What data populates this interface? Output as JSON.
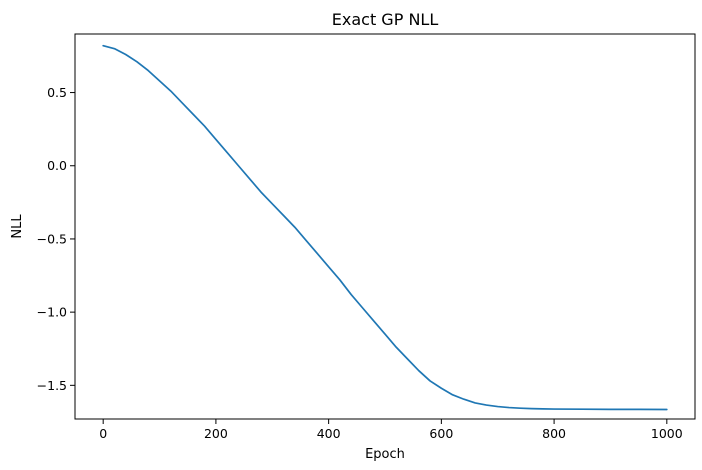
{
  "chart_data": {
    "type": "line",
    "title": "Exact GP NLL",
    "xlabel": "Epoch",
    "ylabel": "NLL",
    "xlim": [
      -50,
      1050
    ],
    "ylim": [
      -1.73,
      0.9
    ],
    "grid": false,
    "x_ticks": [
      0,
      200,
      400,
      600,
      800,
      1000
    ],
    "x_tick_labels": [
      "0",
      "200",
      "400",
      "600",
      "800",
      "1000"
    ],
    "y_ticks": [
      0.5,
      0.0,
      -0.5,
      -1.0,
      -1.5
    ],
    "y_tick_labels": [
      "0.5",
      "0.0",
      "−0.5",
      "−1.0",
      "−1.5"
    ],
    "series": [
      {
        "color": "#1f77b4",
        "x": [
          0,
          20,
          40,
          60,
          80,
          100,
          120,
          140,
          160,
          180,
          200,
          220,
          240,
          260,
          280,
          300,
          320,
          340,
          360,
          380,
          400,
          420,
          440,
          460,
          480,
          500,
          520,
          540,
          560,
          580,
          600,
          620,
          640,
          660,
          680,
          700,
          720,
          740,
          760,
          780,
          800,
          850,
          900,
          950,
          1000
        ],
        "y": [
          0.82,
          0.8,
          0.76,
          0.71,
          0.65,
          0.58,
          0.51,
          0.43,
          0.35,
          0.27,
          0.18,
          0.09,
          0.0,
          -0.09,
          -0.18,
          -0.26,
          -0.34,
          -0.42,
          -0.51,
          -0.6,
          -0.69,
          -0.78,
          -0.88,
          -0.97,
          -1.06,
          -1.15,
          -1.24,
          -1.32,
          -1.4,
          -1.47,
          -1.52,
          -1.565,
          -1.595,
          -1.62,
          -1.635,
          -1.645,
          -1.652,
          -1.656,
          -1.659,
          -1.661,
          -1.662,
          -1.663,
          -1.664,
          -1.664,
          -1.665
        ]
      }
    ]
  }
}
